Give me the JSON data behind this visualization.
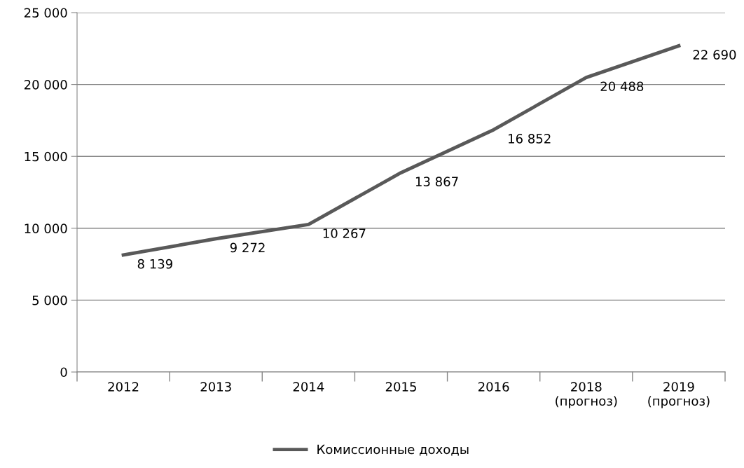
{
  "chart_data": {
    "type": "line",
    "categories": [
      "2012",
      "2013",
      "2014",
      "2015",
      "2016",
      "2018\n(прогноз)",
      "2019\n(прогноз)"
    ],
    "series": [
      {
        "name": "Комиссионные доходы",
        "color": "#595959",
        "values": [
          8139,
          9272,
          10267,
          13867,
          16852,
          20488,
          22690
        ],
        "value_labels": [
          "8 139",
          "9 272",
          "10 267",
          "13 867",
          "16 852",
          "20 488",
          "22 690"
        ]
      }
    ],
    "ylim": [
      0,
      25000
    ],
    "yticks": [
      {
        "value": 0,
        "label": "0"
      },
      {
        "value": 5000,
        "label": "5 000"
      },
      {
        "value": 10000,
        "label": "10 000"
      },
      {
        "value": 15000,
        "label": "15 000"
      },
      {
        "value": 20000,
        "label": "20 000"
      },
      {
        "value": 25000,
        "label": "25 000"
      }
    ],
    "grid": "y",
    "legend": "bottom",
    "marker": "none",
    "line_style": "solid"
  }
}
